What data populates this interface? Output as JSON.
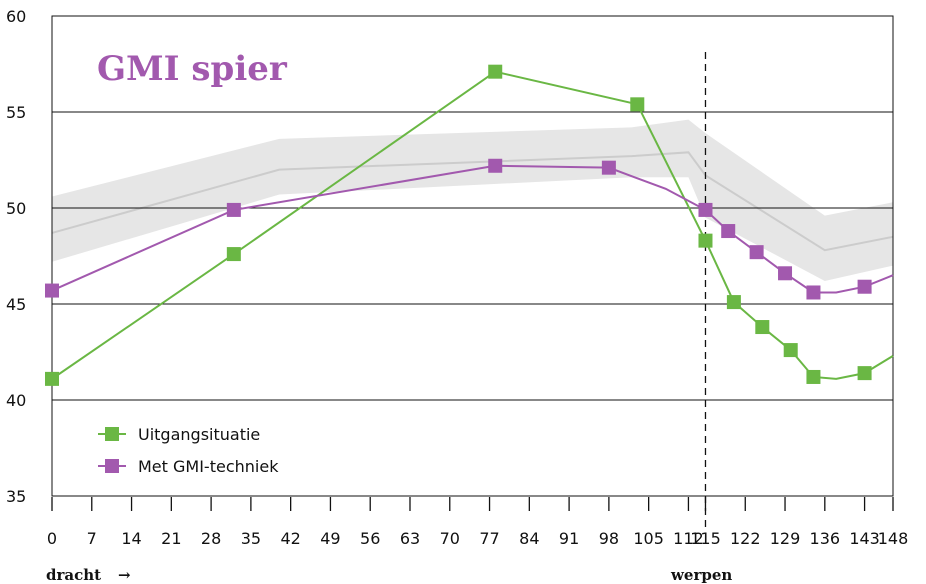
{
  "chart_data": {
    "type": "line",
    "title": "GMI spier",
    "title_color": "#a259ae",
    "ylim": [
      35,
      60
    ],
    "yticks": [
      35,
      40,
      45,
      50,
      55,
      60
    ],
    "xlim": [
      0,
      148
    ],
    "xticks": [
      0,
      7,
      14,
      21,
      28,
      35,
      42,
      49,
      56,
      63,
      70,
      77,
      84,
      91,
      98,
      105,
      112,
      115,
      122,
      129,
      136,
      143,
      148
    ],
    "xlabel": "dracht",
    "xlabel_arrow": "→",
    "marker_label": "werpen",
    "marker_x": 115,
    "grid": "horizontal",
    "legend_position": "bottom-left",
    "band": {
      "color": "#e6e6e6",
      "line_color": "#cccccc",
      "x": [
        0,
        40,
        102,
        112,
        115,
        136,
        148
      ],
      "lower": [
        47.2,
        50.7,
        51.6,
        51.6,
        49.5,
        46.2,
        47.0
      ],
      "mid": [
        48.7,
        52.0,
        52.7,
        52.9,
        51.7,
        47.8,
        48.5
      ],
      "upper": [
        50.6,
        53.6,
        54.2,
        54.6,
        53.9,
        49.6,
        50.3
      ]
    },
    "series": [
      {
        "name": "Uitgangsituatie",
        "color": "#6ab744",
        "x": [
          0,
          32,
          78,
          103,
          115,
          120,
          125,
          130,
          134,
          138,
          143,
          148
        ],
        "y": [
          41.1,
          47.6,
          57.1,
          55.4,
          48.3,
          45.1,
          43.8,
          42.6,
          41.2,
          41.1,
          41.4,
          42.3
        ],
        "markers": [
          true,
          true,
          true,
          true,
          true,
          true,
          true,
          true,
          true,
          false,
          true,
          false
        ]
      },
      {
        "name": "Met GMI-techniek",
        "color": "#a259ae",
        "x": [
          0,
          32,
          78,
          98,
          108,
          115,
          119,
          124,
          129,
          134,
          138,
          143,
          148
        ],
        "y": [
          45.7,
          49.9,
          52.2,
          52.1,
          51.0,
          49.9,
          48.8,
          47.7,
          46.6,
          45.6,
          45.6,
          45.9,
          46.5
        ],
        "markers": [
          true,
          true,
          true,
          true,
          false,
          true,
          true,
          true,
          true,
          true,
          false,
          true,
          false
        ]
      }
    ]
  }
}
